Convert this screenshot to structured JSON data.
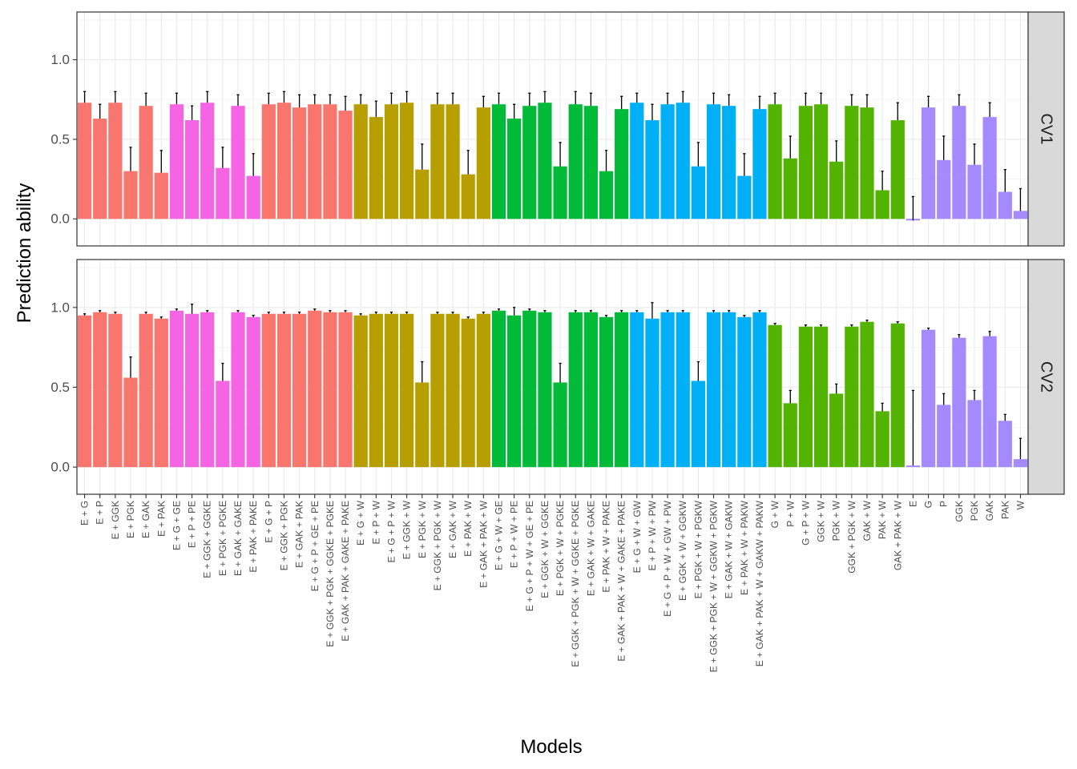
{
  "chart_data": {
    "type": "bar",
    "xlabel": "Models",
    "ylabel": "Prediction ability",
    "ylim": [
      -0.17,
      1.3
    ],
    "yticks": [
      0.0,
      0.5,
      1.0
    ],
    "ytick_labels": [
      "0.0",
      "0.5",
      "1.0"
    ],
    "grid": true,
    "categories": [
      "E + G",
      "E + P",
      "E + GGK",
      "E + PGK",
      "E + GAK",
      "E + PAK",
      "E + G + GE",
      "E + P + PE",
      "E + GGK + GGKE",
      "E + PGK + PGKE",
      "E + GAK + GAKE",
      "E + PAK + PAKE",
      "E + G + P",
      "E + GGK + PGK",
      "E + GAK + PAK",
      "E + G + P + GE + PE",
      "E + GGK + PGK + GGKE + PGKE",
      "E + GAK + PAK + GAKE + PAKE",
      "E + G + W",
      "E + P + W",
      "E + G + P + W",
      "E + GGK + W",
      "E + PGK + W",
      "E + GGK + PGK + W",
      "E + GAK + W",
      "E + PAK + W",
      "E + GAK + PAK + W",
      "E + G + W + GE",
      "E + P + W + PE",
      "E + G + P + W + GE + PE",
      "E + GGK + W + GGKE",
      "E + PGK + W + PGKE",
      "E + GGK + PGK + W + GGKE + PGKE",
      "E + GAK + W + GAKE",
      "E + PAK + W + PAKE",
      "E + GAK + PAK + W + GAKE + PAKE",
      "E + G + W + GW",
      "E + P + W + PW",
      "E + G + P + W + GW + PW",
      "E + GGK + W + GGKW",
      "E + PGK + W + PGKW",
      "E + GGK + PGK + W + GGKW + PGKW",
      "E + GAK + W + GAKW",
      "E + PAK + W + PAKW",
      "E + GAK + PAK + W + GAKW + PAKW",
      "G + W",
      "P + W",
      "G + P + W",
      "GGK + W",
      "PGK + W",
      "GGK + PGK + W",
      "GAK + W",
      "PAK + W",
      "GAK + PAK + W",
      "E",
      "G",
      "P",
      "GGK",
      "PGK",
      "GAK",
      "PAK",
      "W"
    ],
    "groups": [
      {
        "color": "#F8766D",
        "count": 6
      },
      {
        "color": "#F564E3",
        "count": 6
      },
      {
        "color": "#F8766D",
        "count": 6
      },
      {
        "color": "#B79F00",
        "count": 9
      },
      {
        "color": "#00BA38",
        "count": 9
      },
      {
        "color": "#00B0F6",
        "count": 9
      },
      {
        "color": "#53B400",
        "count": 9
      },
      {
        "color": "#A58AFF",
        "count": 8
      }
    ],
    "panels": [
      {
        "name": "CV1",
        "values": [
          0.73,
          0.63,
          0.73,
          0.3,
          0.71,
          0.29,
          0.72,
          0.62,
          0.73,
          0.32,
          0.71,
          0.27,
          0.72,
          0.73,
          0.7,
          0.72,
          0.72,
          0.68,
          0.72,
          0.64,
          0.72,
          0.73,
          0.31,
          0.72,
          0.72,
          0.28,
          0.7,
          0.72,
          0.63,
          0.71,
          0.73,
          0.33,
          0.72,
          0.71,
          0.3,
          0.69,
          0.73,
          0.62,
          0.72,
          0.73,
          0.33,
          0.72,
          0.71,
          0.27,
          0.69,
          0.72,
          0.38,
          0.71,
          0.72,
          0.36,
          0.71,
          0.7,
          0.18,
          0.62,
          -0.01,
          0.7,
          0.37,
          0.71,
          0.34,
          0.64,
          0.17,
          0.05
        ],
        "errors": [
          0.07,
          0.09,
          0.07,
          0.15,
          0.08,
          0.14,
          0.07,
          0.09,
          0.07,
          0.13,
          0.07,
          0.14,
          0.07,
          0.07,
          0.08,
          0.06,
          0.06,
          0.09,
          0.06,
          0.1,
          0.07,
          0.07,
          0.16,
          0.07,
          0.07,
          0.15,
          0.07,
          0.07,
          0.09,
          0.08,
          0.07,
          0.15,
          0.08,
          0.08,
          0.13,
          0.08,
          0.06,
          0.1,
          0.07,
          0.07,
          0.15,
          0.07,
          0.07,
          0.14,
          0.08,
          0.07,
          0.14,
          0.08,
          0.07,
          0.13,
          0.07,
          0.08,
          0.12,
          0.11,
          0.15,
          0.07,
          0.15,
          0.07,
          0.13,
          0.09,
          0.14,
          0.14
        ]
      },
      {
        "name": "CV2",
        "values": [
          0.95,
          0.97,
          0.96,
          0.56,
          0.96,
          0.93,
          0.98,
          0.96,
          0.97,
          0.54,
          0.97,
          0.94,
          0.96,
          0.96,
          0.96,
          0.98,
          0.97,
          0.97,
          0.95,
          0.96,
          0.96,
          0.96,
          0.53,
          0.96,
          0.96,
          0.93,
          0.96,
          0.98,
          0.95,
          0.98,
          0.97,
          0.53,
          0.97,
          0.97,
          0.94,
          0.97,
          0.97,
          0.93,
          0.97,
          0.97,
          0.54,
          0.97,
          0.97,
          0.94,
          0.97,
          0.89,
          0.4,
          0.88,
          0.88,
          0.46,
          0.88,
          0.91,
          0.35,
          0.9,
          0.01,
          0.86,
          0.39,
          0.81,
          0.42,
          0.82,
          0.29,
          0.05
        ],
        "errors": [
          0.01,
          0.01,
          0.01,
          0.13,
          0.01,
          0.01,
          0.01,
          0.06,
          0.01,
          0.11,
          0.01,
          0.01,
          0.01,
          0.01,
          0.01,
          0.01,
          0.01,
          0.01,
          0.01,
          0.01,
          0.01,
          0.01,
          0.13,
          0.01,
          0.01,
          0.01,
          0.01,
          0.01,
          0.05,
          0.01,
          0.01,
          0.12,
          0.01,
          0.01,
          0.01,
          0.01,
          0.01,
          0.1,
          0.01,
          0.01,
          0.12,
          0.01,
          0.01,
          0.01,
          0.01,
          0.01,
          0.08,
          0.01,
          0.01,
          0.06,
          0.01,
          0.01,
          0.05,
          0.01,
          0.47,
          0.01,
          0.07,
          0.02,
          0.06,
          0.03,
          0.04,
          0.13
        ]
      }
    ]
  }
}
